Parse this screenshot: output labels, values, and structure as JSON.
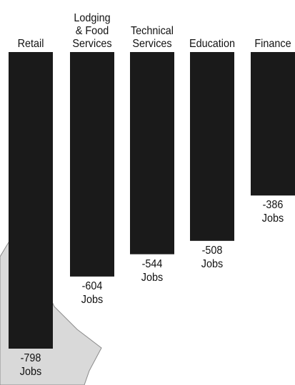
{
  "chart_data": {
    "type": "bar",
    "orientation": "vertical-downward",
    "categories": [
      [
        "Retail"
      ],
      [
        "Lodging",
        "& Food",
        "Services"
      ],
      [
        "Technical",
        "Services"
      ],
      [
        "Education"
      ],
      [
        "Finance"
      ]
    ],
    "values": [
      -798,
      -604,
      -544,
      -508,
      -386
    ],
    "value_labels": [
      "-798",
      "-604",
      "-544",
      "-508",
      "-386"
    ],
    "unit_label": "Jobs",
    "ylim": [
      -800,
      0
    ],
    "bar_color": "#1a1a1a",
    "background_shape_color": "#d9d9d9",
    "grid": false,
    "legend": "none"
  }
}
